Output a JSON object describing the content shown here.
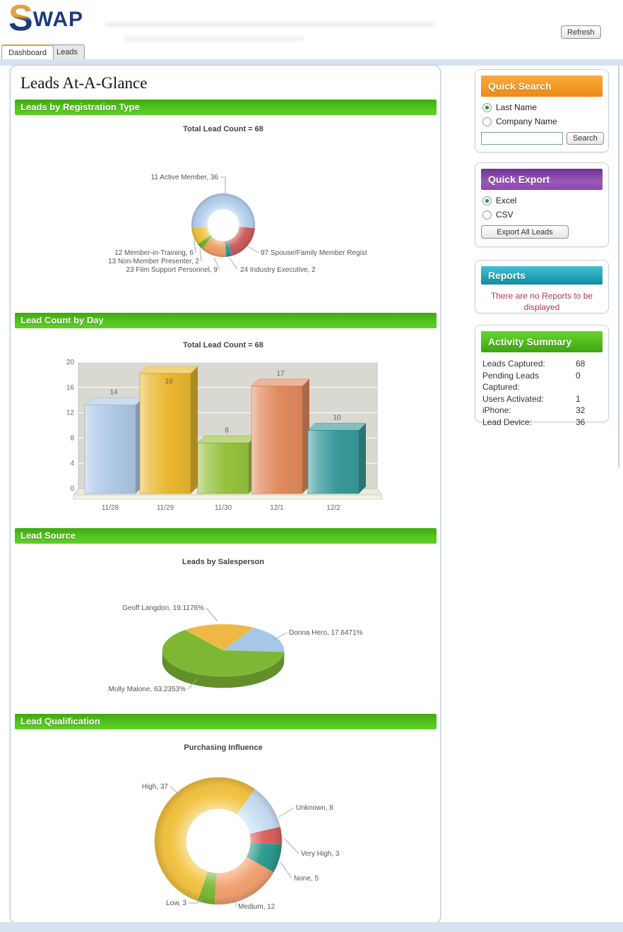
{
  "header": {
    "logo_s": "S",
    "logo_text": "WAP",
    "refresh_label": "Refresh"
  },
  "tabs": [
    {
      "label": "Dashboard",
      "active": true
    },
    {
      "label": "Leads",
      "active": false
    }
  ],
  "page_title": "Leads At-A-Glance",
  "chart_data": [
    {
      "type": "pie",
      "subtype": "donut",
      "section": "Leads by Registration Type",
      "title": "Total Lead Count = 68",
      "total": 68,
      "slices": [
        {
          "label": "11 Active Member, 36",
          "value": 36,
          "color": "#b3d0ee"
        },
        {
          "label": "97 Spouse/Family Member Regist",
          "value": 13,
          "color": "#ca5c5c"
        },
        {
          "label": "24 Industry Executive, 2",
          "value": 2,
          "color": "#2f9a9a"
        },
        {
          "label": "23 Film Support Personnel, 9",
          "value": 9,
          "color": "#f0a069"
        },
        {
          "label": "13 Non-Member Presenter, 2",
          "value": 2,
          "color": "#6fb52f"
        },
        {
          "label": "12 Member-in-Training, 6",
          "value": 6,
          "color": "#f3c340"
        }
      ]
    },
    {
      "type": "bar",
      "section": "Lead Count by Day",
      "title": "Total Lead Count = 68",
      "categories": [
        "11/28",
        "11/29",
        "11/30",
        "12/1",
        "12/2"
      ],
      "values": [
        14,
        19,
        8,
        17,
        10
      ],
      "colors": [
        "#adc8e6",
        "#e9b72f",
        "#95c23e",
        "#e18a5d",
        "#399a9a"
      ],
      "ylim": [
        0,
        20
      ],
      "yticks": [
        0,
        4,
        8,
        12,
        16,
        20
      ]
    },
    {
      "type": "pie",
      "subtype": "pie3d",
      "section": "Lead Source",
      "title": "Leads by Salesperson",
      "slices": [
        {
          "label": "Donna Hero, 17.6471%",
          "value": 17.6471,
          "color": "#a6c7e7"
        },
        {
          "label": "Molly Malone, 63.2353%",
          "value": 63.2353,
          "color": "#7db733"
        },
        {
          "label": "Geoff Langdon, 19.1176%",
          "value": 19.1176,
          "color": "#edb944"
        }
      ]
    },
    {
      "type": "pie",
      "subtype": "donut",
      "section": "Lead Qualification",
      "title": "Purchasing Influence",
      "total": 68,
      "slices": [
        {
          "label": "Unknown, 8",
          "value": 8,
          "color": "#c8dff4"
        },
        {
          "label": "Very High, 3",
          "value": 3,
          "color": "#d8605a"
        },
        {
          "label": "None, 5",
          "value": 5,
          "color": "#2b9a8e"
        },
        {
          "label": "Medium, 12",
          "value": 12,
          "color": "#f3a171"
        },
        {
          "label": "Low, 3",
          "value": 3,
          "color": "#7cba3b"
        },
        {
          "label": "High, 37",
          "value": 37,
          "color": "#f3c342"
        }
      ]
    }
  ],
  "sidebar": {
    "quick_search": {
      "title": "Quick Search",
      "options": [
        "Last Name",
        "Company Name"
      ],
      "selected": "Last Name",
      "input_value": "",
      "button": "Search",
      "header_color": "#f09a28"
    },
    "quick_export": {
      "title": "Quick Export",
      "options": [
        "Excel",
        "CSV"
      ],
      "selected": "Excel",
      "button": "Export All Leads",
      "header_color": "#8d49ae"
    },
    "reports": {
      "title": "Reports",
      "empty_message": "There are no Reports to be displayed",
      "header_color": "#1ba0b5"
    },
    "activity_summary": {
      "title": "Activity Summary",
      "header_color": "#4cc01a",
      "rows": [
        {
          "label": "Leads Captured:",
          "value": "68"
        },
        {
          "label": "Pending Leads Captured:",
          "value": "0"
        },
        {
          "label": "Users Activated:",
          "value": "1"
        },
        {
          "label": "iPhone:",
          "value": "32"
        },
        {
          "label": "Lead Device:",
          "value": "36"
        }
      ]
    }
  }
}
